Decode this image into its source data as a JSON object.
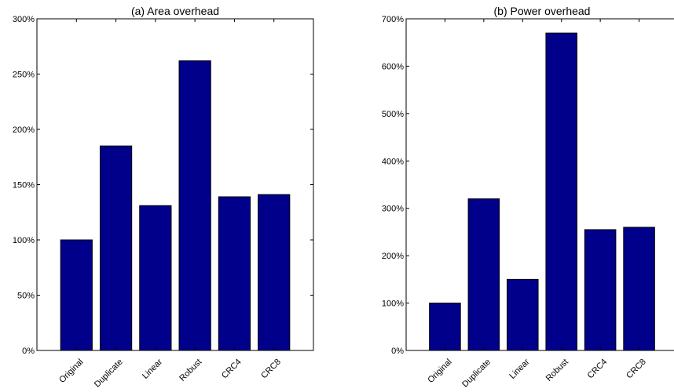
{
  "chart_data": [
    {
      "type": "bar",
      "title": "(a) Area overhead",
      "categories": [
        "Original",
        "Duplicate",
        "Linear",
        "Robust",
        "CRC4",
        "CRC8"
      ],
      "values": [
        100,
        185,
        131,
        262,
        139,
        141
      ],
      "ylim": [
        0,
        300
      ],
      "yticks": [
        0,
        50,
        100,
        150,
        200,
        250,
        300
      ],
      "ytick_labels": [
        "0%",
        "50%",
        "100%",
        "150%",
        "200%",
        "250%",
        "300%"
      ],
      "xlabel": "",
      "ylabel": "",
      "bar_color": "#00008b",
      "grid": false
    },
    {
      "type": "bar",
      "title": "(b) Power overhead",
      "categories": [
        "Original",
        "Duplicate",
        "Linear",
        "Robust",
        "CRC4",
        "CRC8"
      ],
      "values": [
        100,
        320,
        150,
        670,
        255,
        260
      ],
      "ylim": [
        0,
        700
      ],
      "yticks": [
        0,
        100,
        200,
        300,
        400,
        500,
        600,
        700
      ],
      "ytick_labels": [
        "0%",
        "100%",
        "200%",
        "300%",
        "400%",
        "500%",
        "600%",
        "700%"
      ],
      "xlabel": "",
      "ylabel": "",
      "bar_color": "#00008b",
      "grid": false
    }
  ]
}
